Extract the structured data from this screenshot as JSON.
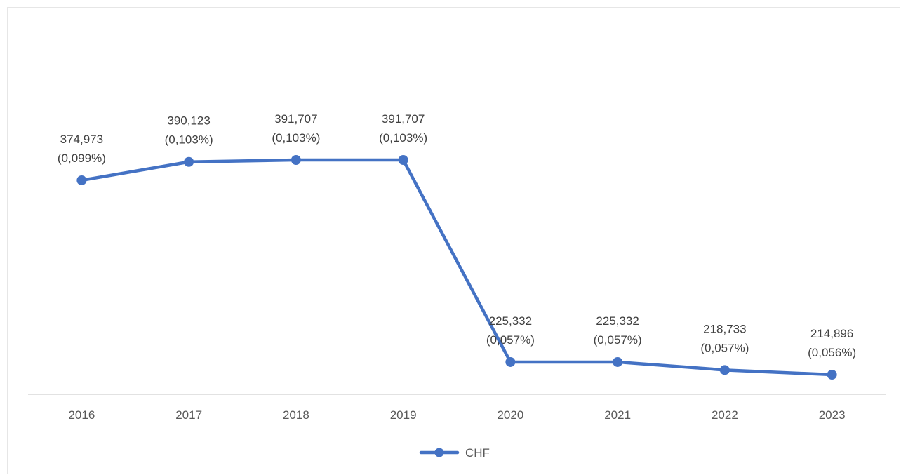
{
  "chart_data": {
    "type": "line",
    "title": "",
    "xlabel": "",
    "ylabel": "",
    "categories": [
      "2016",
      "2017",
      "2018",
      "2019",
      "2020",
      "2021",
      "2022",
      "2023"
    ],
    "series": [
      {
        "name": "CHF",
        "color": "#4472C4",
        "values": [
          374973,
          390123,
          391707,
          391707,
          225332,
          225332,
          218733,
          214896
        ],
        "labels": [
          [
            "374,973",
            "(0,099%)"
          ],
          [
            "390,123",
            "(0,103%)"
          ],
          [
            "391,707",
            "(0,103%)"
          ],
          [
            "391,707",
            "(0,103%)"
          ],
          [
            "225,332",
            "(0,057%)"
          ],
          [
            "225,332",
            "(0,057%)"
          ],
          [
            "218,733",
            "(0,057%)"
          ],
          [
            "214,896",
            "(0,056%)"
          ]
        ]
      }
    ],
    "ylim": [
      180000,
      400000
    ],
    "grid": false,
    "legend": "bottom-center"
  }
}
